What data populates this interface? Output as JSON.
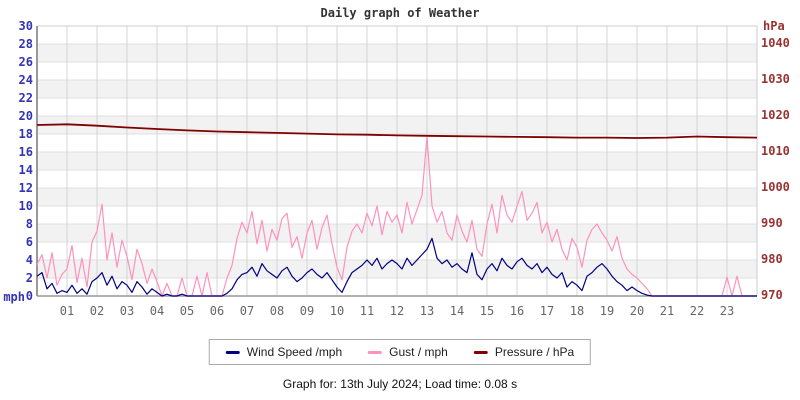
{
  "footer": {
    "text": "Graph for: 13th July 2024; Load time: 0.08 s"
  },
  "chart_data": {
    "type": "line",
    "title": "Daily graph of Weather",
    "x_axis": {
      "unit": "hour of day",
      "range": [
        0,
        24
      ],
      "tick_labels": [
        "01",
        "02",
        "03",
        "04",
        "05",
        "06",
        "07",
        "08",
        "09",
        "10",
        "11",
        "12",
        "13",
        "14",
        "15",
        "16",
        "17",
        "18",
        "19",
        "20",
        "21",
        "22",
        "23"
      ]
    },
    "axes": {
      "left": {
        "label": "mph",
        "ylim": [
          0,
          30
        ],
        "ticks": [
          30,
          28,
          26,
          24,
          22,
          20,
          18,
          16,
          14,
          12,
          10,
          8,
          6,
          4,
          2,
          0
        ],
        "color": "#3333b4"
      },
      "right": {
        "label": "hPa",
        "ylim": [
          970,
          1045
        ],
        "ticks": [
          1040,
          1030,
          1020,
          1010,
          1000,
          990,
          980,
          970
        ],
        "color": "#993333"
      }
    },
    "grid": {
      "on": true,
      "band_fill": "#f2f2f2",
      "hline_color": "#e0e0e0",
      "vline_color": "#d4d4d4",
      "border_color": "#999999"
    },
    "legend_position": "bottom",
    "draw_order": [
      1,
      0,
      2
    ],
    "series": [
      {
        "name": "Wind Speed /mph",
        "color": "#000080",
        "axis": "left",
        "sample_minutes": 10,
        "values": [
          2.2,
          2.6,
          0.8,
          1.4,
          0.3,
          0.6,
          0.4,
          1.2,
          0.3,
          0.8,
          0.2,
          1.6,
          2.0,
          2.6,
          1.2,
          2.2,
          0.8,
          1.6,
          1.2,
          0.4,
          1.6,
          1.0,
          0.2,
          0.8,
          0.4,
          0,
          0.2,
          0,
          0,
          0.2,
          0,
          0,
          0,
          0,
          0,
          0,
          0,
          0,
          0.3,
          0.8,
          1.8,
          2.4,
          2.6,
          3.2,
          2.2,
          3.6,
          2.8,
          2.4,
          2.0,
          2.8,
          3.2,
          2.2,
          1.6,
          2.0,
          2.6,
          3.0,
          2.4,
          2.0,
          2.6,
          1.8,
          1.0,
          0.4,
          1.6,
          2.6,
          3.0,
          3.4,
          4.0,
          3.4,
          4.2,
          3.0,
          3.6,
          4.0,
          3.6,
          3.0,
          4.2,
          3.4,
          4.0,
          4.6,
          5.2,
          6.4,
          4.2,
          3.6,
          4.0,
          3.2,
          3.6,
          3.0,
          2.6,
          4.8,
          2.4,
          1.8,
          3.0,
          3.6,
          2.8,
          4.2,
          3.4,
          3.0,
          3.8,
          4.2,
          3.4,
          3.0,
          3.6,
          2.6,
          3.2,
          2.4,
          2.0,
          2.6,
          1.0,
          1.6,
          1.2,
          0.6,
          2.2,
          2.6,
          3.2,
          3.6,
          3.0,
          2.2,
          1.6,
          1.2,
          0.6,
          1.0,
          0.6,
          0.3,
          0.1,
          0,
          0,
          0,
          0,
          0,
          0,
          0,
          0,
          0,
          0,
          0,
          0,
          0,
          0,
          0,
          0,
          0,
          0,
          0,
          0,
          0,
          0
        ]
      },
      {
        "name": "Gust / mph",
        "color": "#ff91bb",
        "axis": "left",
        "sample_minutes": 10,
        "values": [
          3.5,
          4.6,
          2.0,
          4.8,
          1.2,
          2.4,
          3.0,
          5.6,
          1.5,
          4.2,
          1.0,
          6.0,
          7.2,
          10.2,
          4.0,
          7.0,
          3.2,
          6.2,
          4.4,
          1.8,
          5.2,
          3.6,
          1.4,
          3.0,
          1.6,
          0,
          1.4,
          0,
          0,
          2.0,
          0,
          0,
          2.2,
          0,
          2.6,
          0,
          0,
          0,
          2.0,
          3.4,
          6.4,
          8.2,
          7.0,
          9.4,
          5.8,
          8.4,
          5.0,
          7.4,
          6.2,
          8.6,
          9.2,
          5.4,
          6.6,
          4.2,
          7.0,
          8.4,
          5.2,
          7.6,
          9.0,
          5.8,
          3.2,
          1.8,
          5.4,
          7.2,
          8.0,
          7.0,
          9.2,
          7.8,
          10.0,
          6.8,
          9.4,
          8.2,
          9.0,
          7.0,
          10.4,
          8.0,
          9.6,
          11.2,
          17.7,
          10.0,
          8.2,
          9.4,
          7.0,
          6.2,
          9.0,
          7.2,
          6.0,
          8.4,
          5.2,
          4.4,
          8.0,
          10.2,
          7.0,
          11.2,
          9.0,
          8.2,
          10.0,
          11.6,
          8.4,
          9.2,
          10.4,
          7.0,
          8.2,
          6.0,
          7.4,
          5.2,
          4.0,
          6.4,
          5.4,
          3.2,
          6.2,
          7.4,
          8.0,
          7.0,
          6.2,
          5.0,
          6.6,
          4.2,
          3.0,
          2.4,
          2.0,
          1.4,
          0.8,
          0,
          0,
          0,
          0,
          0,
          0,
          0,
          0,
          0,
          0,
          0,
          0,
          0,
          0,
          0,
          2.1,
          0,
          2.2,
          0,
          0,
          0,
          0
        ]
      },
      {
        "name": "Pressure / hPa",
        "color": "#800000",
        "axis": "right",
        "sample_minutes": 60,
        "values": [
          1017.5,
          1017.7,
          1017.3,
          1016.8,
          1016.4,
          1016.0,
          1015.7,
          1015.5,
          1015.3,
          1015.1,
          1014.9,
          1014.8,
          1014.6,
          1014.5,
          1014.4,
          1014.3,
          1014.2,
          1014.1,
          1014.0,
          1014.0,
          1013.9,
          1014.0,
          1014.3,
          1014.1,
          1014.0
        ]
      }
    ]
  }
}
